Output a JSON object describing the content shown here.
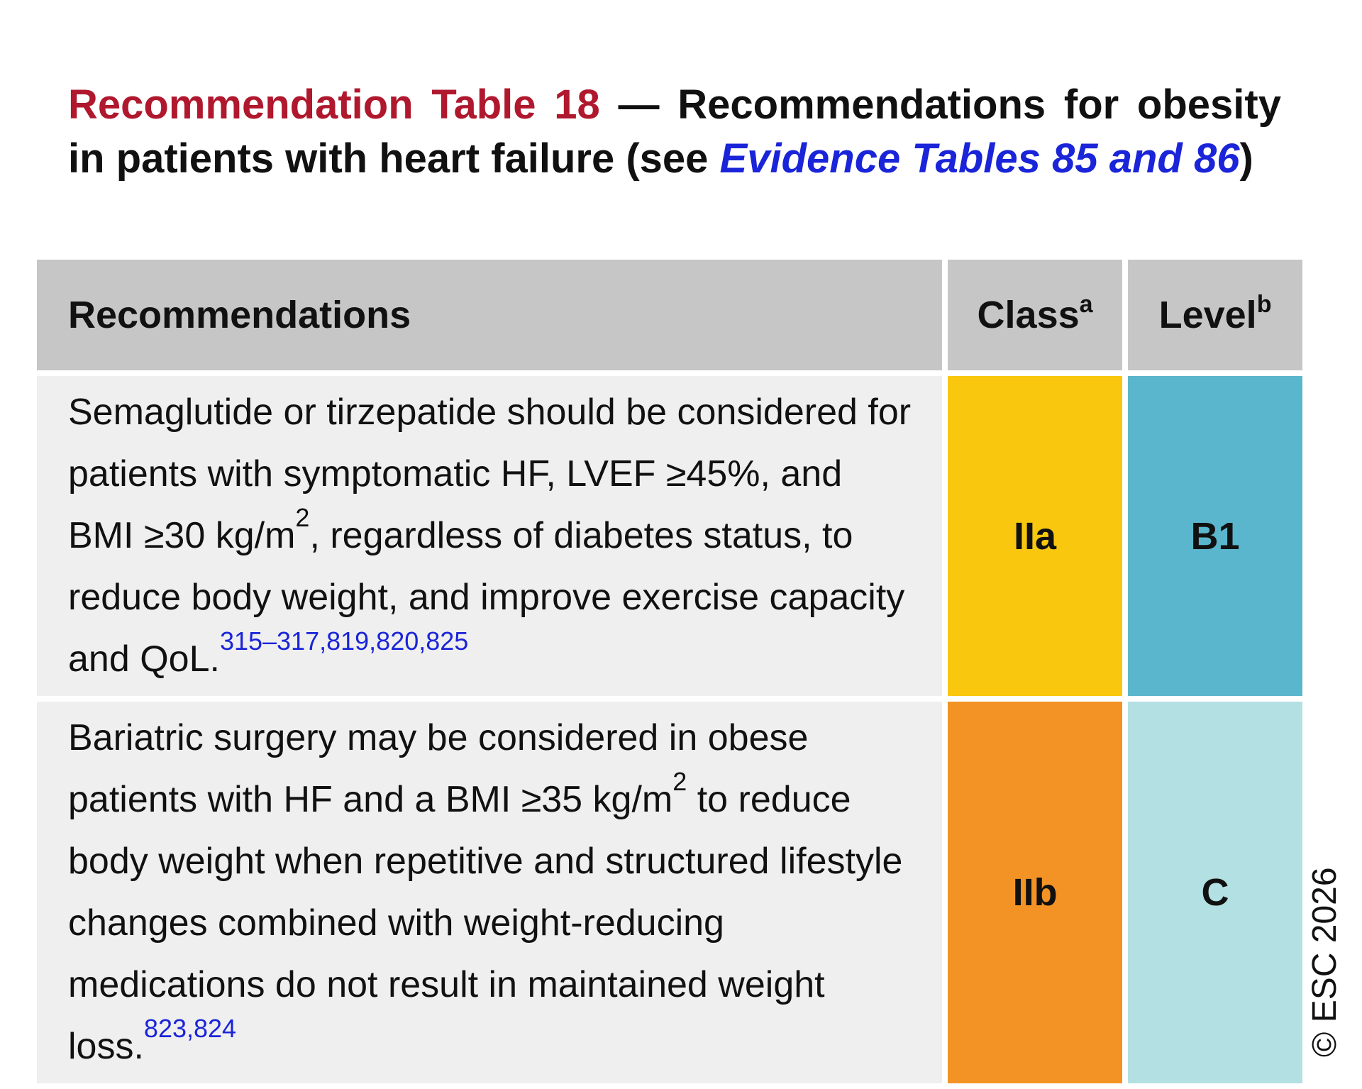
{
  "title": {
    "label": "Recommendation Table 18",
    "dash": " — ",
    "text": "Recommendations for obesity in patients with heart failure (see ",
    "link_text": "Evidence Tables 85",
    "link_and": "and ",
    "link_num": "86",
    "close": ")"
  },
  "table": {
    "headers": {
      "recommendations": "Recommendations",
      "class": "Class",
      "class_sup": "a",
      "level": "Level",
      "level_sup": "b"
    },
    "rows": [
      {
        "text_parts": [
          "Semaglutide or tirzepatide should be considered for patients with symptomatic HF, LVEF ≥45%, and BMI ≥30 kg/m",
          "2",
          ", regardless of diabetes status, to reduce body weight, and improve exercise capacity and QoL."
        ],
        "refs": "315–317,819,820,825",
        "class": "IIa",
        "level": "B1",
        "class_color": "#f8c70e",
        "level_color": "#5ab6cc"
      },
      {
        "text_parts": [
          "Bariatric surgery may be considered in obese patients with HF and a BMI ≥35 kg/m",
          "2",
          " to reduce body weight when repetitive and structured lifestyle changes combined with weight-reducing medications do not result in maintained weight loss."
        ],
        "refs": "823,824",
        "class": "IIb",
        "level": "C",
        "class_color": "#f39325",
        "level_color": "#b3e0e2"
      }
    ]
  },
  "copyright": "© ESC 2026"
}
